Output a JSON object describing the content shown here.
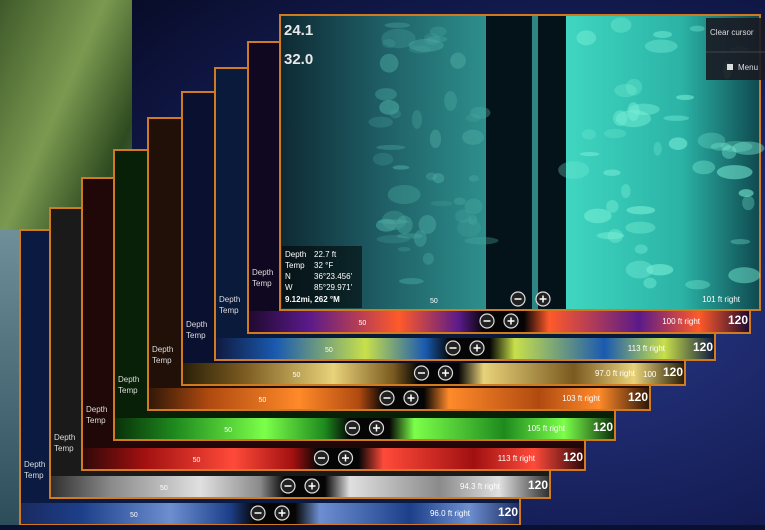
{
  "overlay_menu": {
    "clear_cursor": "Clear cursor",
    "menu": "Menu"
  },
  "front_panel": {
    "depth_top": "24.1",
    "temp_top": "32.0",
    "readouts": [
      {
        "label": "Depth",
        "value": "22.7 ft"
      },
      {
        "label": "Temp",
        "value": "32 °F"
      },
      {
        "label": "N",
        "value": "36°23.456'"
      },
      {
        "label": "W",
        "value": "85°29.971'"
      }
    ],
    "distance": "9.12mi, 262 °M",
    "center_mark": "50",
    "range": "101 ft right"
  },
  "panels": [
    {
      "range": "96.0 ft right",
      "scale": "120",
      "center_mark": "50"
    },
    {
      "range": "94.3 ft right",
      "scale": "120",
      "center_mark": "50"
    },
    {
      "range": "113 ft right",
      "scale": "120",
      "center_mark": "50"
    },
    {
      "range": "105 ft right",
      "scale": "120",
      "center_mark": "50"
    },
    {
      "range": "103 ft right",
      "scale": "120",
      "center_mark": "50"
    },
    {
      "range": "97.0 ft right",
      "scale": "120",
      "scale_near": "100",
      "center_mark": "50"
    },
    {
      "range": "113 ft right",
      "scale": "120",
      "center_mark": "50"
    },
    {
      "range": "100 ft right",
      "scale": "120",
      "center_mark": "50"
    }
  ]
}
